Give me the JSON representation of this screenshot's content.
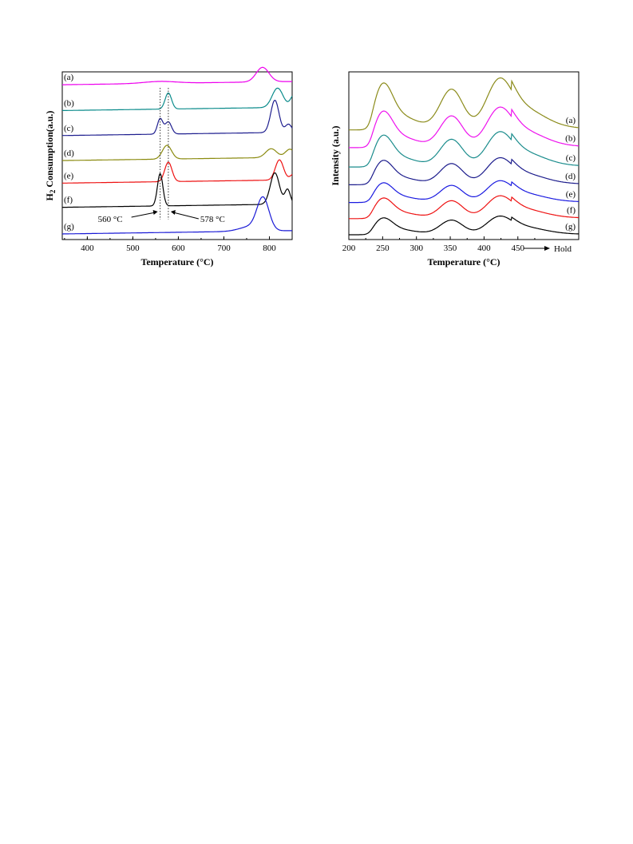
{
  "chart_data": [
    {
      "type": "line",
      "ylabel_main": "H",
      "ylabel_sub": "2",
      "ylabel_rest": " Consumption(a.u.)",
      "xlabel": "Temperature (°C)",
      "xlim": [
        345,
        850
      ],
      "xticks": [
        400,
        500,
        600,
        700,
        800
      ],
      "grid": false,
      "legend": "none; curve labels at left",
      "series": [
        {
          "name": "(a)",
          "color": "#ee00ee",
          "baseline": 0.94,
          "peaks": [
            [
              560,
              0.012,
              35
            ],
            [
              785,
              0.09,
              14
            ]
          ]
        },
        {
          "name": "(b)",
          "color": "#0a8b8b",
          "baseline": 0.78,
          "peaks": [
            [
              578,
              0.1,
              7
            ],
            [
              818,
              0.12,
              12
            ],
            [
              855,
              0.08,
              8
            ]
          ]
        },
        {
          "name": "(c)",
          "color": "#1f1f8f",
          "baseline": 0.625,
          "peaks": [
            [
              560,
              0.095,
              6
            ],
            [
              578,
              0.075,
              7
            ],
            [
              812,
              0.2,
              9
            ],
            [
              842,
              0.05,
              7
            ]
          ]
        },
        {
          "name": "(d)",
          "color": "#8b8b10",
          "baseline": 0.47,
          "peaks": [
            [
              575,
              0.085,
              10
            ],
            [
              804,
              0.055,
              12
            ],
            [
              845,
              0.05,
              10
            ]
          ]
        },
        {
          "name": "(e)",
          "color": "#ee1111",
          "baseline": 0.33,
          "peaks": [
            [
              578,
              0.12,
              8
            ],
            [
              822,
              0.125,
              9
            ],
            [
              855,
              0.04,
              8
            ]
          ]
        },
        {
          "name": "(f)",
          "color": "#000000",
          "baseline": 0.18,
          "peaks": [
            [
              560,
              0.2,
              6
            ],
            [
              812,
              0.195,
              10
            ],
            [
              840,
              0.09,
              6
            ]
          ]
        },
        {
          "name": "(g)",
          "color": "#1a1ad6",
          "baseline": 0.015,
          "peaks": [
            [
              786,
              0.195,
              13
            ],
            [
              760,
              0.03,
              25
            ]
          ]
        }
      ],
      "annotations": [
        {
          "text": "560 °C",
          "x": 560
        },
        {
          "text": "578 °C",
          "x": 578
        }
      ]
    },
    {
      "type": "line",
      "ylabel": "Intensity (a.u.)",
      "xlabel": "Temperature (°C)",
      "xlim": [
        200,
        540
      ],
      "xticks": [
        200,
        250,
        300,
        350,
        400,
        450
      ],
      "hold_label": "Hold",
      "grid": false,
      "legend": "none; curve labels at right",
      "series": [
        {
          "name": "(a)",
          "color": "#8b8b1a",
          "baseline": 0.66,
          "scale": 1.0
        },
        {
          "name": "(b)",
          "color": "#ee11ee",
          "baseline": 0.55,
          "scale": 0.78
        },
        {
          "name": "(c)",
          "color": "#1a8c8c",
          "baseline": 0.43,
          "scale": 0.68
        },
        {
          "name": "(d)",
          "color": "#1c1c8c",
          "baseline": 0.32,
          "scale": 0.52
        },
        {
          "name": "(e)",
          "color": "#1a1ae0",
          "baseline": 0.21,
          "scale": 0.42
        },
        {
          "name": "(f)",
          "color": "#ee1111",
          "baseline": 0.11,
          "scale": 0.44
        },
        {
          "name": "(g)",
          "color": "#000000",
          "baseline": 0.01,
          "scale": 0.36
        }
      ]
    }
  ]
}
